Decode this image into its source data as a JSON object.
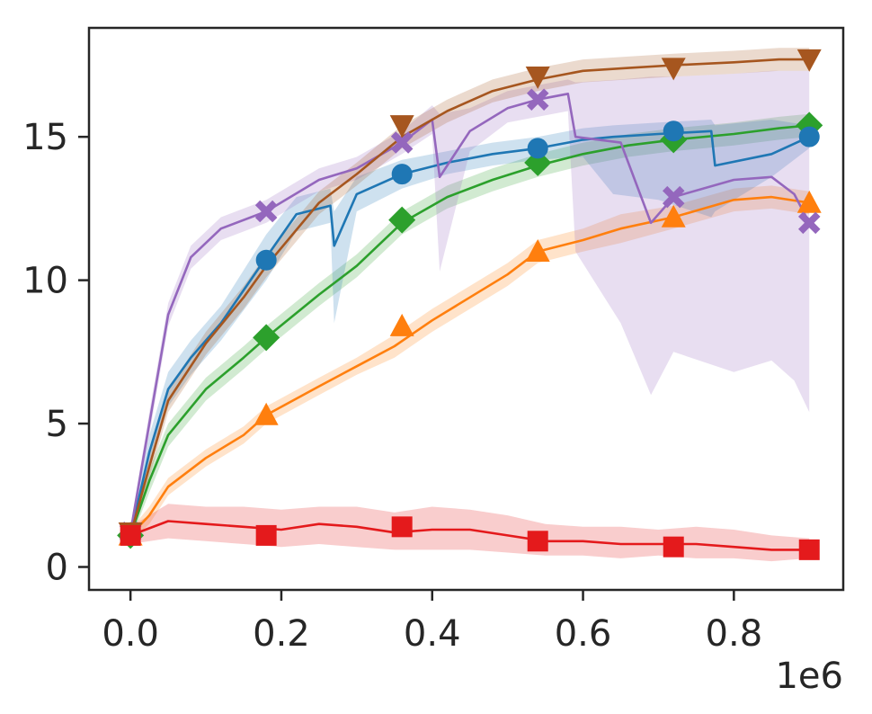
{
  "chart_data": {
    "type": "line",
    "title": "",
    "xlabel": "",
    "ylabel": "",
    "x_offset_label": "1e6",
    "xlim": [
      -55000,
      945000
    ],
    "ylim": [
      -0.8,
      18.8
    ],
    "xticks": [
      0,
      200000,
      400000,
      600000,
      800000
    ],
    "xtick_labels": [
      "0.0",
      "0.2",
      "0.4",
      "0.6",
      "0.8"
    ],
    "yticks": [
      0,
      5,
      10,
      15
    ],
    "ytick_labels": [
      "0",
      "5",
      "10",
      "15"
    ],
    "grid": false,
    "legend": "none",
    "series": [
      {
        "color": "#ff7f0e",
        "marker": "triangle-up",
        "x": [
          0,
          25000,
          50000,
          100000,
          150000,
          180000,
          250000,
          300000,
          350000,
          400000,
          450000,
          500000,
          540000,
          600000,
          650000,
          720000,
          760000,
          800000,
          850000,
          900000
        ],
        "y": [
          1.1,
          1.8,
          2.8,
          3.8,
          4.6,
          5.3,
          6.3,
          7.0,
          7.7,
          8.6,
          9.4,
          10.2,
          11.0,
          11.4,
          11.8,
          12.2,
          12.5,
          12.8,
          12.9,
          12.7
        ],
        "upper": [
          1.3,
          2.1,
          3.1,
          4.1,
          4.9,
          5.6,
          6.6,
          7.3,
          8.1,
          9.0,
          9.8,
          10.6,
          11.4,
          11.8,
          12.3,
          12.6,
          12.9,
          13.2,
          13.3,
          13.1
        ],
        "lower": [
          0.9,
          1.5,
          2.5,
          3.5,
          4.3,
          5.0,
          6.0,
          6.7,
          7.3,
          8.2,
          9.0,
          9.8,
          10.6,
          11.0,
          11.3,
          11.8,
          12.1,
          12.4,
          12.5,
          12.3
        ],
        "marker_x": [
          0,
          180000,
          360000,
          540000,
          720000,
          900000
        ],
        "marker_y": [
          1.1,
          5.3,
          8.4,
          11.0,
          12.2,
          12.7
        ]
      },
      {
        "color": "#2ca02c",
        "marker": "diamond",
        "x": [
          0,
          25000,
          50000,
          100000,
          150000,
          180000,
          250000,
          300000,
          360000,
          420000,
          480000,
          540000,
          600000,
          660000,
          720000,
          800000,
          860000,
          900000
        ],
        "y": [
          1.1,
          3.0,
          4.6,
          6.2,
          7.3,
          8.0,
          9.5,
          10.5,
          12.0,
          12.9,
          13.5,
          14.0,
          14.4,
          14.7,
          14.9,
          15.1,
          15.3,
          15.4
        ],
        "upper": [
          1.3,
          3.4,
          5.0,
          6.6,
          7.7,
          8.4,
          9.9,
          10.9,
          12.4,
          13.3,
          13.9,
          14.4,
          14.8,
          15.1,
          15.3,
          15.5,
          15.7,
          15.8
        ],
        "lower": [
          0.9,
          2.6,
          4.2,
          5.8,
          6.9,
          7.6,
          9.1,
          10.1,
          11.6,
          12.5,
          13.1,
          13.6,
          14.0,
          14.3,
          14.5,
          14.7,
          14.9,
          15.0
        ],
        "marker_x": [
          0,
          180000,
          360000,
          540000,
          720000,
          900000
        ],
        "marker_y": [
          1.1,
          8.0,
          12.1,
          14.1,
          14.9,
          15.4
        ]
      },
      {
        "color": "#1f77b4",
        "marker": "circle",
        "x": [
          0,
          25000,
          50000,
          80000,
          120000,
          180000,
          220000,
          265000,
          270000,
          300000,
          360000,
          420000,
          480000,
          540000,
          600000,
          640000,
          700000,
          770000,
          775000,
          850000,
          900000
        ],
        "y": [
          1.1,
          4.0,
          6.2,
          7.3,
          8.5,
          10.8,
          12.3,
          12.6,
          11.2,
          13.0,
          13.7,
          14.1,
          14.4,
          14.6,
          14.9,
          15.0,
          15.1,
          15.2,
          14.0,
          14.4,
          15.0
        ],
        "upper": [
          1.3,
          4.6,
          6.8,
          7.9,
          9.1,
          11.6,
          12.9,
          13.2,
          12.4,
          13.6,
          14.2,
          14.5,
          14.8,
          15.0,
          15.3,
          15.4,
          15.5,
          15.6,
          15.4,
          15.6,
          15.4
        ],
        "lower": [
          0.9,
          3.4,
          5.6,
          6.7,
          7.9,
          10.0,
          11.7,
          12.0,
          8.5,
          12.4,
          13.2,
          13.7,
          14.0,
          14.2,
          14.3,
          13.0,
          12.8,
          12.2,
          12.4,
          13.6,
          14.6
        ],
        "marker_x": [
          0,
          180000,
          360000,
          540000,
          720000,
          900000
        ],
        "marker_y": [
          1.1,
          10.7,
          13.7,
          14.6,
          15.2,
          15.0
        ]
      },
      {
        "color": "#9467bd",
        "marker": "x-filled",
        "x": [
          0,
          25000,
          50000,
          80000,
          120000,
          180000,
          250000,
          300000,
          360000,
          400000,
          410000,
          450000,
          500000,
          540000,
          580000,
          590000,
          650000,
          690000,
          720000,
          800000,
          850000,
          880000,
          900000
        ],
        "y": [
          1.2,
          5.0,
          8.8,
          10.8,
          11.8,
          12.4,
          13.5,
          13.9,
          14.8,
          15.6,
          13.6,
          15.2,
          16.0,
          16.3,
          16.5,
          15.0,
          14.8,
          12.0,
          12.9,
          13.5,
          13.6,
          13.0,
          12.0
        ],
        "upper": [
          1.4,
          5.4,
          9.2,
          11.2,
          12.2,
          12.8,
          13.9,
          14.3,
          15.2,
          16.1,
          15.8,
          16.0,
          16.6,
          16.8,
          17.0,
          16.9,
          17.0,
          17.1,
          17.1,
          17.2,
          17.3,
          17.3,
          17.3
        ],
        "lower": [
          1.0,
          4.6,
          8.4,
          10.4,
          11.4,
          12.0,
          13.1,
          13.5,
          14.4,
          15.1,
          10.3,
          14.5,
          15.5,
          15.7,
          15.9,
          11.0,
          8.5,
          6.0,
          7.5,
          6.8,
          7.2,
          6.5,
          5.4
        ],
        "marker_x": [
          0,
          180000,
          360000,
          540000,
          720000,
          900000
        ],
        "marker_y": [
          1.2,
          12.4,
          14.8,
          16.3,
          12.9,
          12.0
        ]
      },
      {
        "color": "#a6561f",
        "marker": "triangle-down",
        "x": [
          0,
          25000,
          50000,
          100000,
          150000,
          180000,
          250000,
          300000,
          360000,
          420000,
          480000,
          540000,
          600000,
          660000,
          720000,
          800000,
          860000,
          900000
        ],
        "y": [
          1.1,
          3.5,
          5.8,
          7.8,
          9.4,
          10.5,
          12.7,
          13.7,
          15.0,
          15.9,
          16.6,
          17.0,
          17.3,
          17.4,
          17.5,
          17.6,
          17.7,
          17.7
        ],
        "upper": [
          1.3,
          3.9,
          6.2,
          8.2,
          9.8,
          10.9,
          13.1,
          14.1,
          15.4,
          16.3,
          17.0,
          17.4,
          17.7,
          17.8,
          17.9,
          18.0,
          18.1,
          18.1
        ],
        "lower": [
          0.9,
          3.1,
          5.4,
          7.4,
          9.0,
          10.1,
          12.3,
          13.3,
          14.6,
          15.5,
          16.2,
          16.6,
          16.9,
          17.0,
          17.1,
          17.2,
          17.3,
          17.3
        ],
        "marker_x": [
          0,
          360000,
          540000,
          720000,
          900000
        ],
        "marker_y": [
          1.2,
          15.4,
          17.1,
          17.4,
          17.7
        ]
      },
      {
        "color": "#e41a1c",
        "marker": "square",
        "x": [
          0,
          50000,
          100000,
          150000,
          200000,
          250000,
          300000,
          350000,
          400000,
          450000,
          500000,
          550000,
          600000,
          650000,
          700000,
          750000,
          800000,
          850000,
          900000
        ],
        "y": [
          1.1,
          1.6,
          1.5,
          1.4,
          1.3,
          1.5,
          1.4,
          1.2,
          1.3,
          1.3,
          1.1,
          0.9,
          0.9,
          0.8,
          0.8,
          0.8,
          0.7,
          0.6,
          0.6
        ],
        "upper": [
          1.4,
          2.2,
          2.1,
          2.1,
          2.0,
          2.1,
          2.1,
          1.9,
          2.1,
          2.0,
          1.8,
          1.5,
          1.4,
          1.4,
          1.3,
          1.4,
          1.3,
          1.1,
          1.0
        ],
        "lower": [
          0.8,
          1.0,
          0.9,
          0.8,
          0.7,
          0.8,
          0.7,
          0.6,
          0.6,
          0.6,
          0.5,
          0.4,
          0.4,
          0.3,
          0.4,
          0.3,
          0.3,
          0.2,
          0.3
        ],
        "marker_x": [
          0,
          180000,
          360000,
          540000,
          720000,
          900000
        ],
        "marker_y": [
          1.1,
          1.1,
          1.4,
          0.9,
          0.7,
          0.6
        ]
      }
    ]
  }
}
